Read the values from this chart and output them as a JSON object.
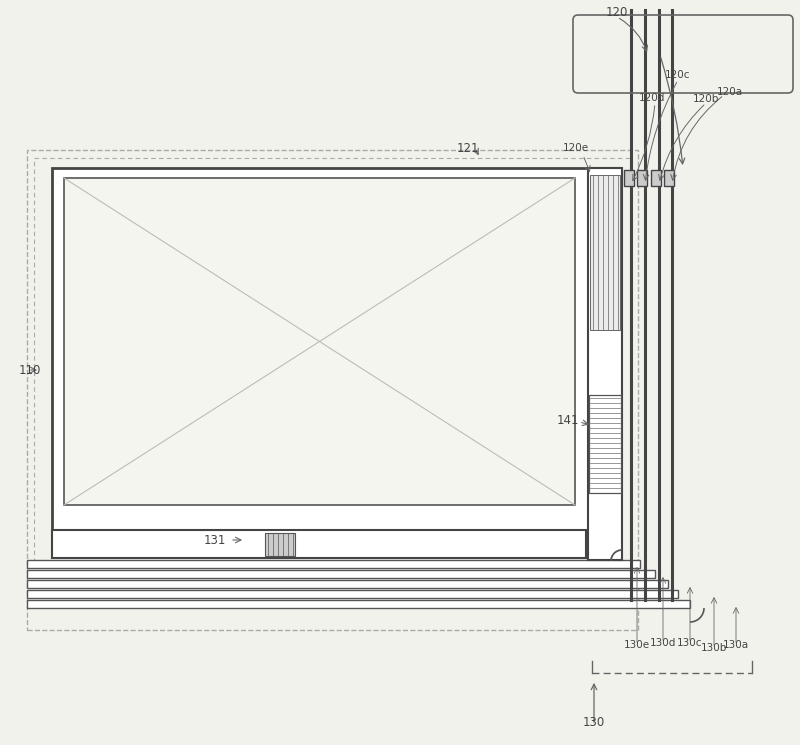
{
  "bg": "#f2f2ed",
  "lc": "#555555",
  "dc": "#333333",
  "fig_w": 8.0,
  "fig_h": 7.45,
  "labels": {
    "110": [
      30,
      370,
      8.5
    ],
    "120": [
      617,
      12,
      8.5
    ],
    "121": [
      468,
      148,
      8.5
    ],
    "120a": [
      730,
      92,
      7.5
    ],
    "120b": [
      706,
      99,
      7.5
    ],
    "120c": [
      678,
      75,
      7.5
    ],
    "120d": [
      652,
      98,
      7.5
    ],
    "120e": [
      576,
      148,
      7.5
    ],
    "130": [
      594,
      723,
      8.5
    ],
    "130a": [
      736,
      645,
      7.5
    ],
    "130b": [
      714,
      648,
      7.5
    ],
    "130c": [
      690,
      643,
      7.5
    ],
    "130d": [
      663,
      643,
      7.5
    ],
    "130e": [
      637,
      645,
      7.5
    ],
    "131": [
      215,
      540,
      8.5
    ],
    "141": [
      568,
      420,
      8.5
    ]
  }
}
